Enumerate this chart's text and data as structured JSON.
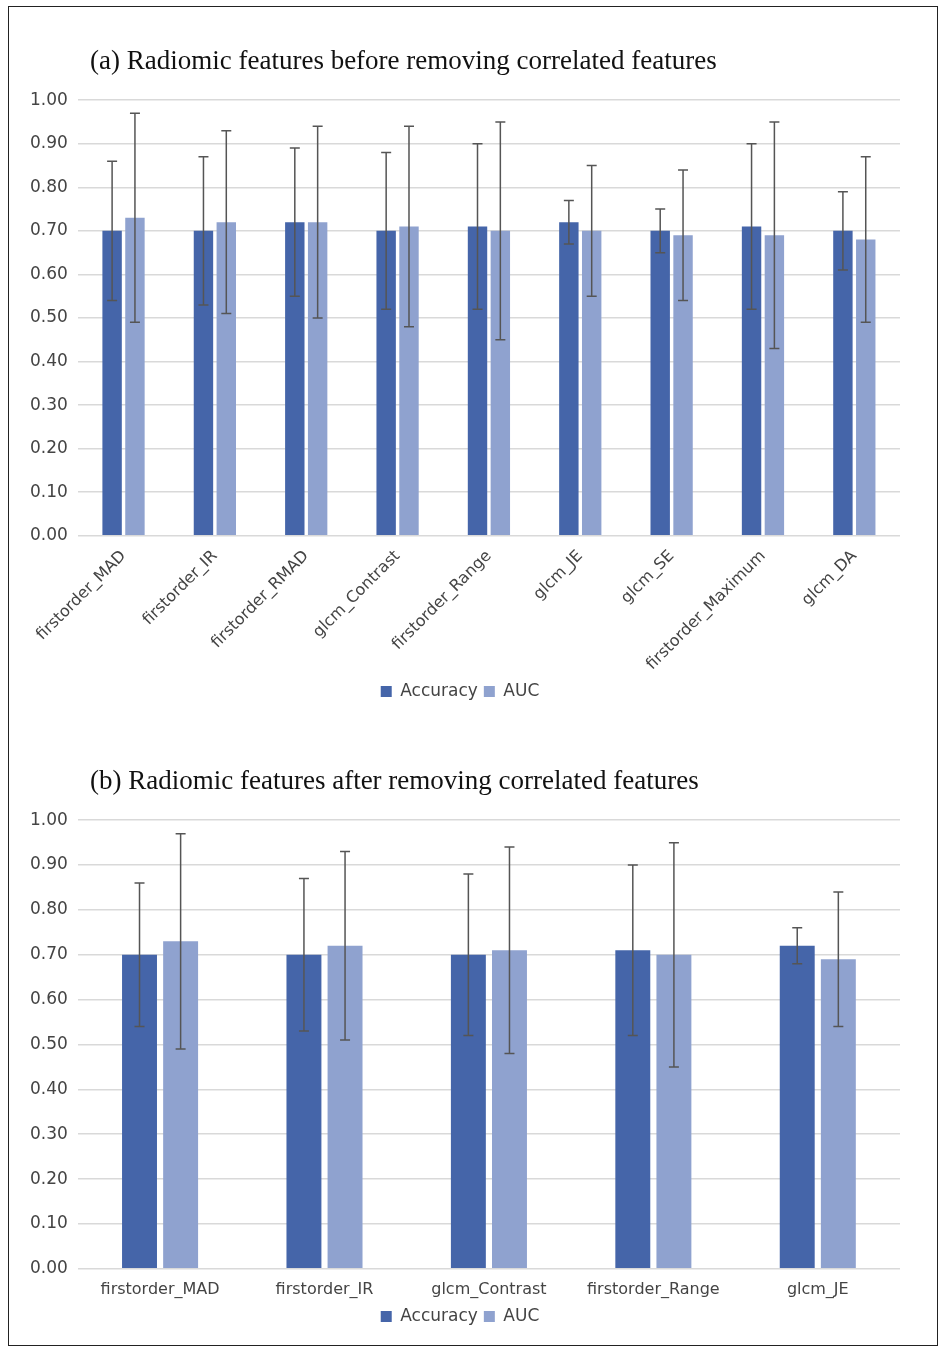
{
  "chart_data": [
    {
      "type": "bar",
      "title": "(a)  Radiomic features before removing correlated features",
      "categories": [
        "firstorder_MAD",
        "firstorder_IR",
        "firstorder_RMAD",
        "glcm_Contrast",
        "firstorder_Range",
        "glcm_JE",
        "glcm_SE",
        "firstorder_Maximum",
        "glcm_DA"
      ],
      "series": [
        {
          "name": "Accuracy",
          "color": "#4565a9",
          "values": [
            0.7,
            0.7,
            0.72,
            0.7,
            0.71,
            0.72,
            0.7,
            0.71,
            0.7
          ],
          "errors": [
            0.16,
            0.17,
            0.17,
            0.18,
            0.19,
            0.05,
            0.05,
            0.19,
            0.09
          ]
        },
        {
          "name": "AUC",
          "color": "#8fa2cf",
          "values": [
            0.73,
            0.72,
            0.72,
            0.71,
            0.7,
            0.7,
            0.69,
            0.69,
            0.68
          ],
          "errors": [
            0.24,
            0.21,
            0.22,
            0.23,
            0.25,
            0.15,
            0.15,
            0.26,
            0.19
          ]
        }
      ],
      "ylim": [
        0,
        1
      ],
      "yticks": [
        {
          "value": 0,
          "label": "0.00"
        },
        {
          "value": 0.1,
          "label": "0.10"
        },
        {
          "value": 0.2,
          "label": "0.20"
        },
        {
          "value": 0.3,
          "label": "0.30"
        },
        {
          "value": 0.4,
          "label": "0.40"
        },
        {
          "value": 0.5,
          "label": "0.50"
        },
        {
          "value": 0.6,
          "label": "0.60"
        },
        {
          "value": 0.7,
          "label": "0.70"
        },
        {
          "value": 0.8,
          "label": "0.80"
        },
        {
          "value": 0.9,
          "label": "0.90"
        },
        {
          "value": 1,
          "label": "1.00"
        }
      ],
      "grid": "y",
      "legend": "bottom"
    },
    {
      "type": "bar",
      "title": "(b)  Radiomic features after removing correlated features",
      "categories": [
        "firstorder_MAD",
        "firstorder_IR",
        "glcm_Contrast",
        "firstorder_Range",
        "glcm_JE"
      ],
      "series": [
        {
          "name": "Accuracy",
          "color": "#4565a9",
          "values": [
            0.7,
            0.7,
            0.7,
            0.71,
            0.72
          ],
          "errors": [
            0.16,
            0.17,
            0.18,
            0.19,
            0.04
          ]
        },
        {
          "name": "AUC",
          "color": "#8fa2cf",
          "values": [
            0.73,
            0.72,
            0.71,
            0.7,
            0.69
          ],
          "errors": [
            0.24,
            0.21,
            0.23,
            0.25,
            0.15
          ]
        }
      ],
      "ylim": [
        0,
        1
      ],
      "yticks": [
        {
          "value": 0,
          "label": "0.00"
        },
        {
          "value": 0.1,
          "label": "0.10"
        },
        {
          "value": 0.2,
          "label": "0.20"
        },
        {
          "value": 0.3,
          "label": "0.30"
        },
        {
          "value": 0.4,
          "label": "0.40"
        },
        {
          "value": 0.5,
          "label": "0.50"
        },
        {
          "value": 0.6,
          "label": "0.60"
        },
        {
          "value": 0.7,
          "label": "0.70"
        },
        {
          "value": 0.8,
          "label": "0.80"
        },
        {
          "value": 0.9,
          "label": "0.90"
        },
        {
          "value": 1,
          "label": "1.00"
        }
      ],
      "grid": "y",
      "legend": "bottom"
    }
  ]
}
